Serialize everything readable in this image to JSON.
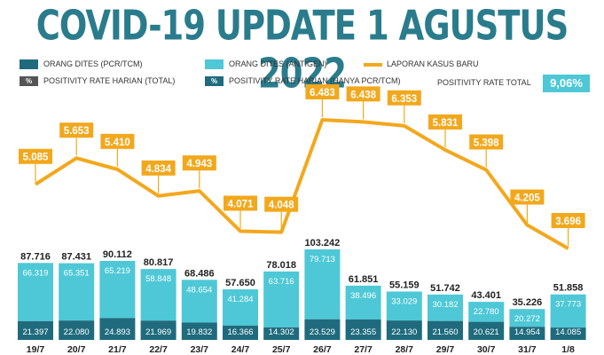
{
  "title": "COVID-19 UPDATE 1 AGUSTUS 2022",
  "legend": {
    "pcr": "ORANG DITES (PCR/TCM)",
    "antigen": "ORANG DITES (ANTIGEN)",
    "cases": "LAPORAN KASUS BARU",
    "pr_total_label": "POSITIVITY RATE HARIAN (TOTAL)",
    "pr_pcr_label": "POSITIVITY RATE HARIAN (HANYA PCR/TCM)",
    "pct_symbol": "%",
    "pr_overall_label": "POSITIVITY RATE TOTAL",
    "pr_overall_value": "9,06%"
  },
  "colors": {
    "title": "#2a7c8c",
    "pcr": "#1f6b7d",
    "antigen": "#4ec8d6",
    "line": "#f2a81d",
    "pct_total": "#555555",
    "pct_pcr": "#1f6b7d"
  },
  "chart_data": {
    "type": "bar+line",
    "title": "COVID-19 UPDATE 1 AGUSTUS 2022",
    "categories": [
      "19/7",
      "20/7",
      "21/7",
      "22/7",
      "23/7",
      "24/7",
      "25/7",
      "26/7",
      "27/7",
      "28/7",
      "29/7",
      "30/7",
      "31/7",
      "1/8"
    ],
    "series": [
      {
        "name": "ORANG DITES (PCR/TCM)",
        "kind": "stacked-bar",
        "values": [
          21397,
          22080,
          24893,
          21969,
          19832,
          16366,
          14302,
          23529,
          23355,
          22130,
          21560,
          20621,
          14954,
          14085
        ],
        "labels": [
          "21.397",
          "22.080",
          "24.893",
          "21.969",
          "19.832",
          "16.366",
          "14.302",
          "23.529",
          "23.355",
          "22.130",
          "21.560",
          "20.621",
          "14.954",
          "14.085"
        ]
      },
      {
        "name": "ORANG DITES (ANTIGEN)",
        "kind": "stacked-bar",
        "values": [
          66319,
          65351,
          65219,
          58848,
          48654,
          41284,
          63716,
          79713,
          38496,
          33029,
          30182,
          22780,
          20272,
          37773
        ],
        "labels": [
          "66.319",
          "65.351",
          "65.219",
          "58.848",
          "48.654",
          "41.284",
          "63.716",
          "79.713",
          "38.496",
          "33.029",
          "30.182",
          "22.780",
          "20.272",
          "37.773"
        ]
      },
      {
        "name": "LAPORAN KASUS BARU",
        "kind": "line",
        "values": [
          5085,
          5653,
          5410,
          4834,
          4943,
          4071,
          4048,
          6483,
          6438,
          6353,
          5831,
          5398,
          4205,
          3696
        ],
        "labels": [
          "5.085",
          "5.653",
          "5.410",
          "4.834",
          "4.943",
          "4.071",
          "4.048",
          "6.483",
          "6.438",
          "6.353",
          "5.831",
          "5.398",
          "4.205",
          "3.696"
        ]
      }
    ],
    "totals": [
      87716,
      87431,
      90112,
      80817,
      68486,
      57650,
      78018,
      103242,
      61851,
      55159,
      51742,
      43401,
      35226,
      51858
    ],
    "total_labels": [
      "87.716",
      "87.431",
      "90.112",
      "80.817",
      "68.486",
      "57.650",
      "78.018",
      "103.242",
      "61.851",
      "55.159",
      "51.742",
      "43.401",
      "35.226",
      "51.858"
    ],
    "bar_axis_range": [
      0,
      103242
    ],
    "line_axis_range": [
      3696,
      6483
    ]
  }
}
